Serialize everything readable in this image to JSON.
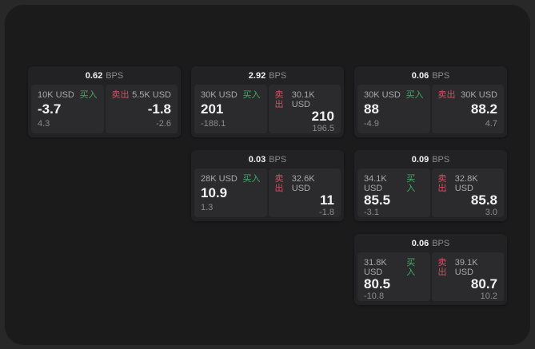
{
  "theme": {
    "outer_bg": "#282829",
    "surface_bg": "#1b1b1c",
    "card_bg": "#222224",
    "panel_bg": "#2b2b2d",
    "buy_color": "#3fae68",
    "sell_color": "#d34f63"
  },
  "labels": {
    "bps_unit": "BPS",
    "buy": "买入",
    "sell": "卖出"
  },
  "cards": [
    {
      "bps": "0.62",
      "col": 0,
      "row": 0,
      "buy": {
        "amount": "10K USD",
        "price": "-3.7",
        "delta": "4.3"
      },
      "sell": {
        "amount": "5.5K USD",
        "price": "-1.8",
        "delta": "-2.6"
      }
    },
    {
      "bps": "2.92",
      "col": 1,
      "row": 0,
      "buy": {
        "amount": "30K USD",
        "price": "201",
        "delta": "-188.1"
      },
      "sell": {
        "amount": "30.1K USD",
        "price": "210",
        "delta": "196.5"
      }
    },
    {
      "bps": "0.06",
      "col": 2,
      "row": 0,
      "buy": {
        "amount": "30K USD",
        "price": "88",
        "delta": "-4.9"
      },
      "sell": {
        "amount": "30K USD",
        "price": "88.2",
        "delta": "4.7"
      }
    },
    {
      "bps": "0.03",
      "col": 1,
      "row": 1,
      "buy": {
        "amount": "28K USD",
        "price": "10.9",
        "delta": "1.3"
      },
      "sell": {
        "amount": "32.6K USD",
        "price": "11",
        "delta": "-1.8"
      }
    },
    {
      "bps": "0.09",
      "col": 2,
      "row": 1,
      "buy": {
        "amount": "34.1K USD",
        "price": "85.5",
        "delta": "-3.1"
      },
      "sell": {
        "amount": "32.8K USD",
        "price": "85.8",
        "delta": "3.0"
      }
    },
    {
      "bps": "0.06",
      "col": 2,
      "row": 2,
      "buy": {
        "amount": "31.8K USD",
        "price": "80.5",
        "delta": "-10.8"
      },
      "sell": {
        "amount": "39.1K USD",
        "price": "80.7",
        "delta": "10.2"
      }
    }
  ]
}
